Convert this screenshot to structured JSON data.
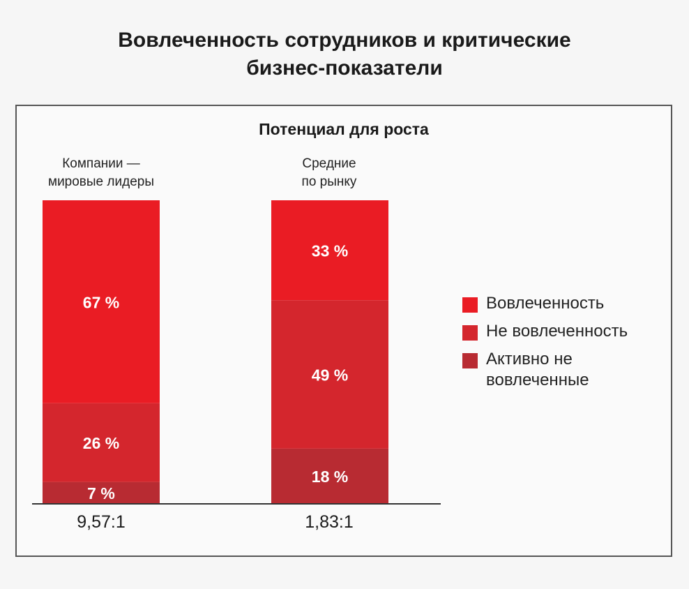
{
  "title": "Вовлеченность сотрудников и критические\nбизнес-показатели",
  "colors": {
    "engaged": "#ea1c24",
    "not_engaged": "#d4262d",
    "actively_disengaged": "#b82b32"
  },
  "chart_data": {
    "type": "bar",
    "stacked": true,
    "title": "Потенциал для роста",
    "categories": [
      "Компании —\nмировые лидеры",
      "Средние\nпо рынку"
    ],
    "series": [
      {
        "name": "Вовлеченность",
        "values": [
          67,
          33
        ],
        "labels": [
          "67 %",
          "33 %"
        ]
      },
      {
        "name": "Не вовлеченность",
        "values": [
          26,
          49
        ],
        "labels": [
          "26 %",
          "49 %"
        ]
      },
      {
        "name": "Активно не вовлеченные",
        "values": [
          7,
          18
        ],
        "labels": [
          "7 %",
          "18 %"
        ]
      }
    ],
    "ratios": [
      "9,57:1",
      "1,83:1"
    ],
    "ylim": [
      0,
      100
    ],
    "legend_position": "right"
  }
}
